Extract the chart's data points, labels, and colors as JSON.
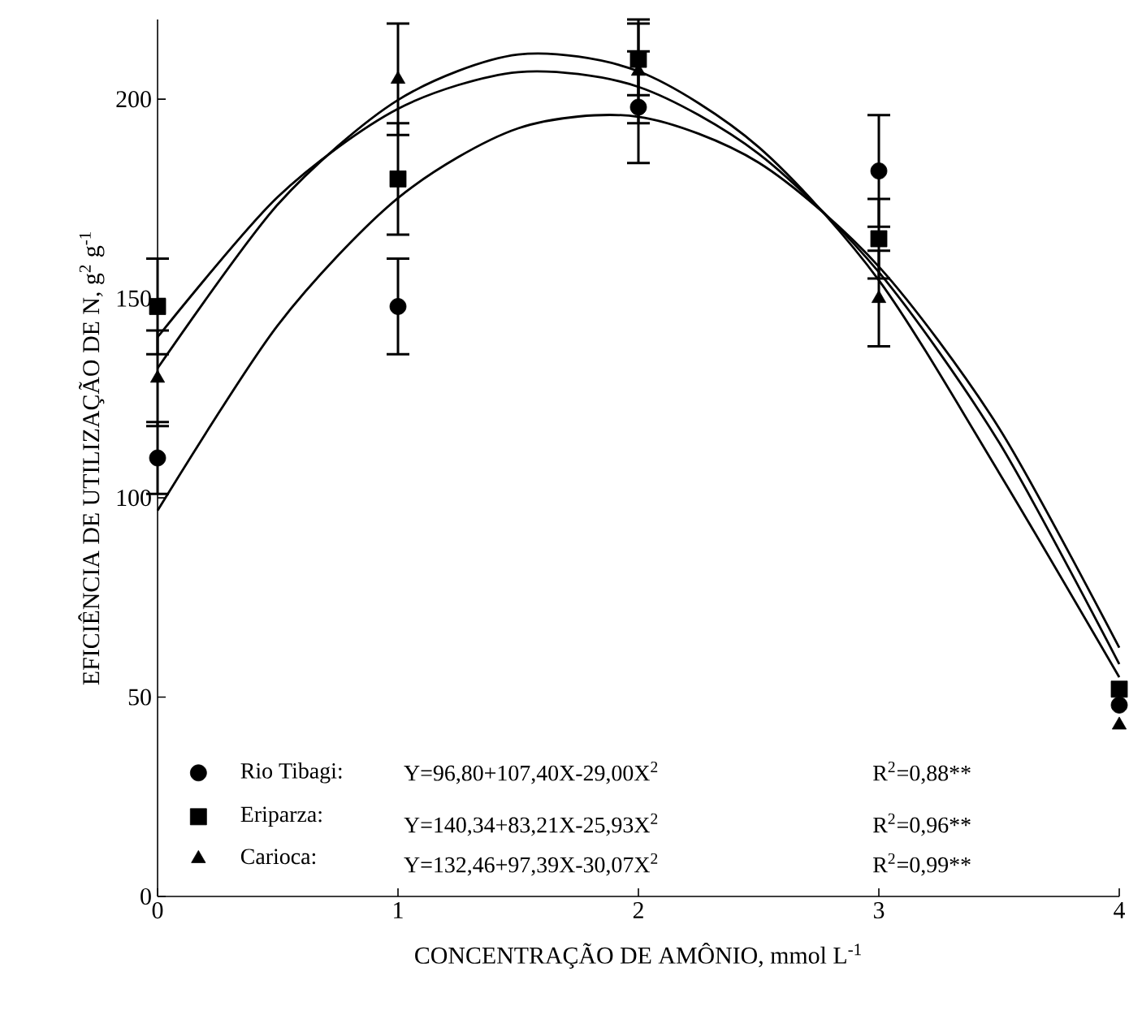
{
  "chart_data": {
    "type": "scatter",
    "xlabel": "CONCENTRAÇÃO DE AMÔNIO, mmol L$^{-1}$",
    "ylabel": "EFICIÊNCIA DE UTILIZAÇÃO DE N, g$^{2}$ g$^{-1}$",
    "x": [
      0,
      1,
      2,
      3,
      4
    ],
    "xlim": [
      0,
      4
    ],
    "xticks": [
      0,
      1,
      2,
      3,
      4
    ],
    "ylim": [
      0,
      220
    ],
    "yticks": [
      0,
      50,
      100,
      150,
      200
    ],
    "legend": "bottom left",
    "series": [
      {
        "name": "Rio Tibagi:",
        "color": "#000000",
        "marker": "circle",
        "values": [
          110,
          148,
          198,
          182,
          48
        ],
        "errors": [
          9,
          12,
          14,
          14,
          null
        ]
      },
      {
        "name": "Eriparza:",
        "color": "#000000",
        "marker": "square",
        "values": [
          148,
          180,
          210,
          165,
          52
        ],
        "errors": [
          12,
          14,
          9,
          10,
          null
        ]
      },
      {
        "name": "Carioca:",
        "color": "#000000",
        "marker": "triangle",
        "values": [
          130,
          205,
          207,
          150,
          43
        ],
        "errors": [
          12,
          14,
          13,
          12,
          null
        ]
      },
      {
        "type": "line",
        "color": "#000000",
        "marker": "none",
        "x": [
          0,
          0.5,
          1,
          1.5,
          2,
          2.5,
          3,
          3.5,
          4
        ],
        "values": [
          96.8,
          143.3,
          175.2,
          192.7,
          195.6,
          184.1,
          158,
          117.5,
          62.4
        ]
      },
      {
        "type": "line",
        "color": "#000000",
        "marker": "none",
        "x": [
          0,
          0.5,
          1,
          1.5,
          2,
          2.5,
          3,
          3.5,
          4
        ],
        "values": [
          140.3,
          175.5,
          197.6,
          206.8,
          203.1,
          186.3,
          156.6,
          113.9,
          58.3
        ]
      },
      {
        "type": "line",
        "color": "#000000",
        "marker": "none",
        "x": [
          0,
          0.5,
          1,
          1.5,
          2,
          2.5,
          3,
          3.5,
          4
        ],
        "values": [
          132.5,
          173.6,
          199.8,
          211.2,
          207,
          188,
          154.6,
          106.3,
          55
        ]
      }
    ],
    "annotations": [
      "Y=96,80+107,40X-29,00X$^{2}$",
      "R$^{2}$=0,88**",
      "Y=140,34+83,21X-25,93X$^{2}$",
      "R$^{2}$=0,96**",
      "Y=132,46+97,39X-30,07X$^{2}$",
      "R$^{2}$=0,99**"
    ]
  }
}
